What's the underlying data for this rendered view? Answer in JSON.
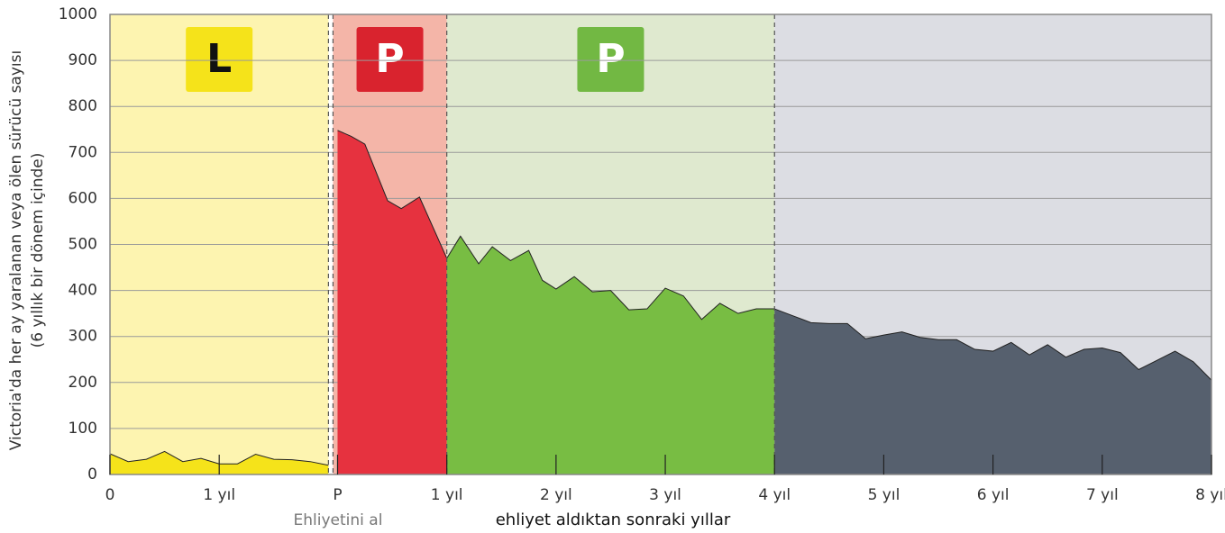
{
  "chart_data": {
    "type": "area",
    "ylabel": [
      "Victoria'da her ay yaralanan veya ölen sürücü sayısı",
      "(6 yıllık bir dönem içinde)"
    ],
    "xlabel": "ehliyet aldıktan sonraki yıllar",
    "annotation": "Ehliyetini al",
    "xlim": [
      0,
      121
    ],
    "xticks": [
      {
        "value": 0,
        "label": "0"
      },
      {
        "value": 12,
        "label": "1 yıl"
      },
      {
        "value": 25,
        "label": "P"
      },
      {
        "value": 37,
        "label": "1 yıl"
      },
      {
        "value": 49,
        "label": "2 yıl"
      },
      {
        "value": 61,
        "label": "3 yıl"
      },
      {
        "value": 73,
        "label": "4 yıl"
      },
      {
        "value": 85,
        "label": "5 yıl"
      },
      {
        "value": 97,
        "label": "6 yıl"
      },
      {
        "value": 109,
        "label": "7 yıl"
      },
      {
        "value": 121,
        "label": "8 yıl"
      }
    ],
    "ylim": [
      0,
      1000
    ],
    "yticks": [
      0,
      100,
      200,
      300,
      400,
      500,
      600,
      700,
      800,
      900,
      1000
    ],
    "grid": true,
    "regions": [
      {
        "label": "L",
        "range": [
          0,
          24
        ],
        "color": "#fdf4b0",
        "badge_color": "#f5e31a",
        "badge_text_color": "#111"
      },
      {
        "label": "P",
        "range": [
          24.5,
          37
        ],
        "color": "#f4b5a8",
        "badge_color": "#d9232e",
        "badge_text_color": "#fff"
      },
      {
        "label": "P",
        "range": [
          37,
          73
        ],
        "color": "#dfe9cf",
        "badge_color": "#72b843",
        "badge_text_color": "#fff"
      },
      {
        "range": [
          73,
          121
        ],
        "color": "#dcdde3"
      }
    ],
    "series": [
      {
        "color": "#f5e31a",
        "x": [
          0,
          2,
          4,
          6,
          8,
          10,
          12,
          14,
          16,
          18,
          20,
          22,
          24
        ],
        "values": [
          45,
          28,
          33,
          50,
          28,
          35,
          23,
          23,
          44,
          33,
          32,
          28,
          20
        ]
      },
      {
        "color": "#e6323f",
        "x": [
          25,
          26.5,
          28,
          30.5,
          32,
          34,
          37
        ],
        "values": [
          748,
          735,
          718,
          595,
          578,
          603,
          470
        ]
      },
      {
        "color": "#78bd43",
        "x": [
          37,
          38.5,
          40.5,
          42,
          44,
          46,
          47.5,
          49,
          51,
          53,
          55,
          57,
          59,
          61,
          63,
          65,
          67,
          69,
          71,
          73
        ],
        "values": [
          470,
          518,
          458,
          495,
          465,
          487,
          422,
          403,
          430,
          397,
          400,
          358,
          360,
          405,
          388,
          337,
          372,
          350,
          360,
          360
        ]
      },
      {
        "color": "#56606e",
        "x": [
          73,
          75,
          77,
          79,
          81,
          83,
          85,
          87,
          89,
          91,
          93,
          95,
          97,
          99,
          101,
          103,
          105,
          107,
          109,
          111,
          113,
          115,
          117,
          119,
          121
        ],
        "values": [
          360,
          345,
          330,
          328,
          328,
          295,
          303,
          310,
          298,
          293,
          293,
          272,
          268,
          287,
          260,
          282,
          255,
          272,
          275,
          265,
          228,
          248,
          268,
          245,
          205
        ]
      }
    ]
  }
}
